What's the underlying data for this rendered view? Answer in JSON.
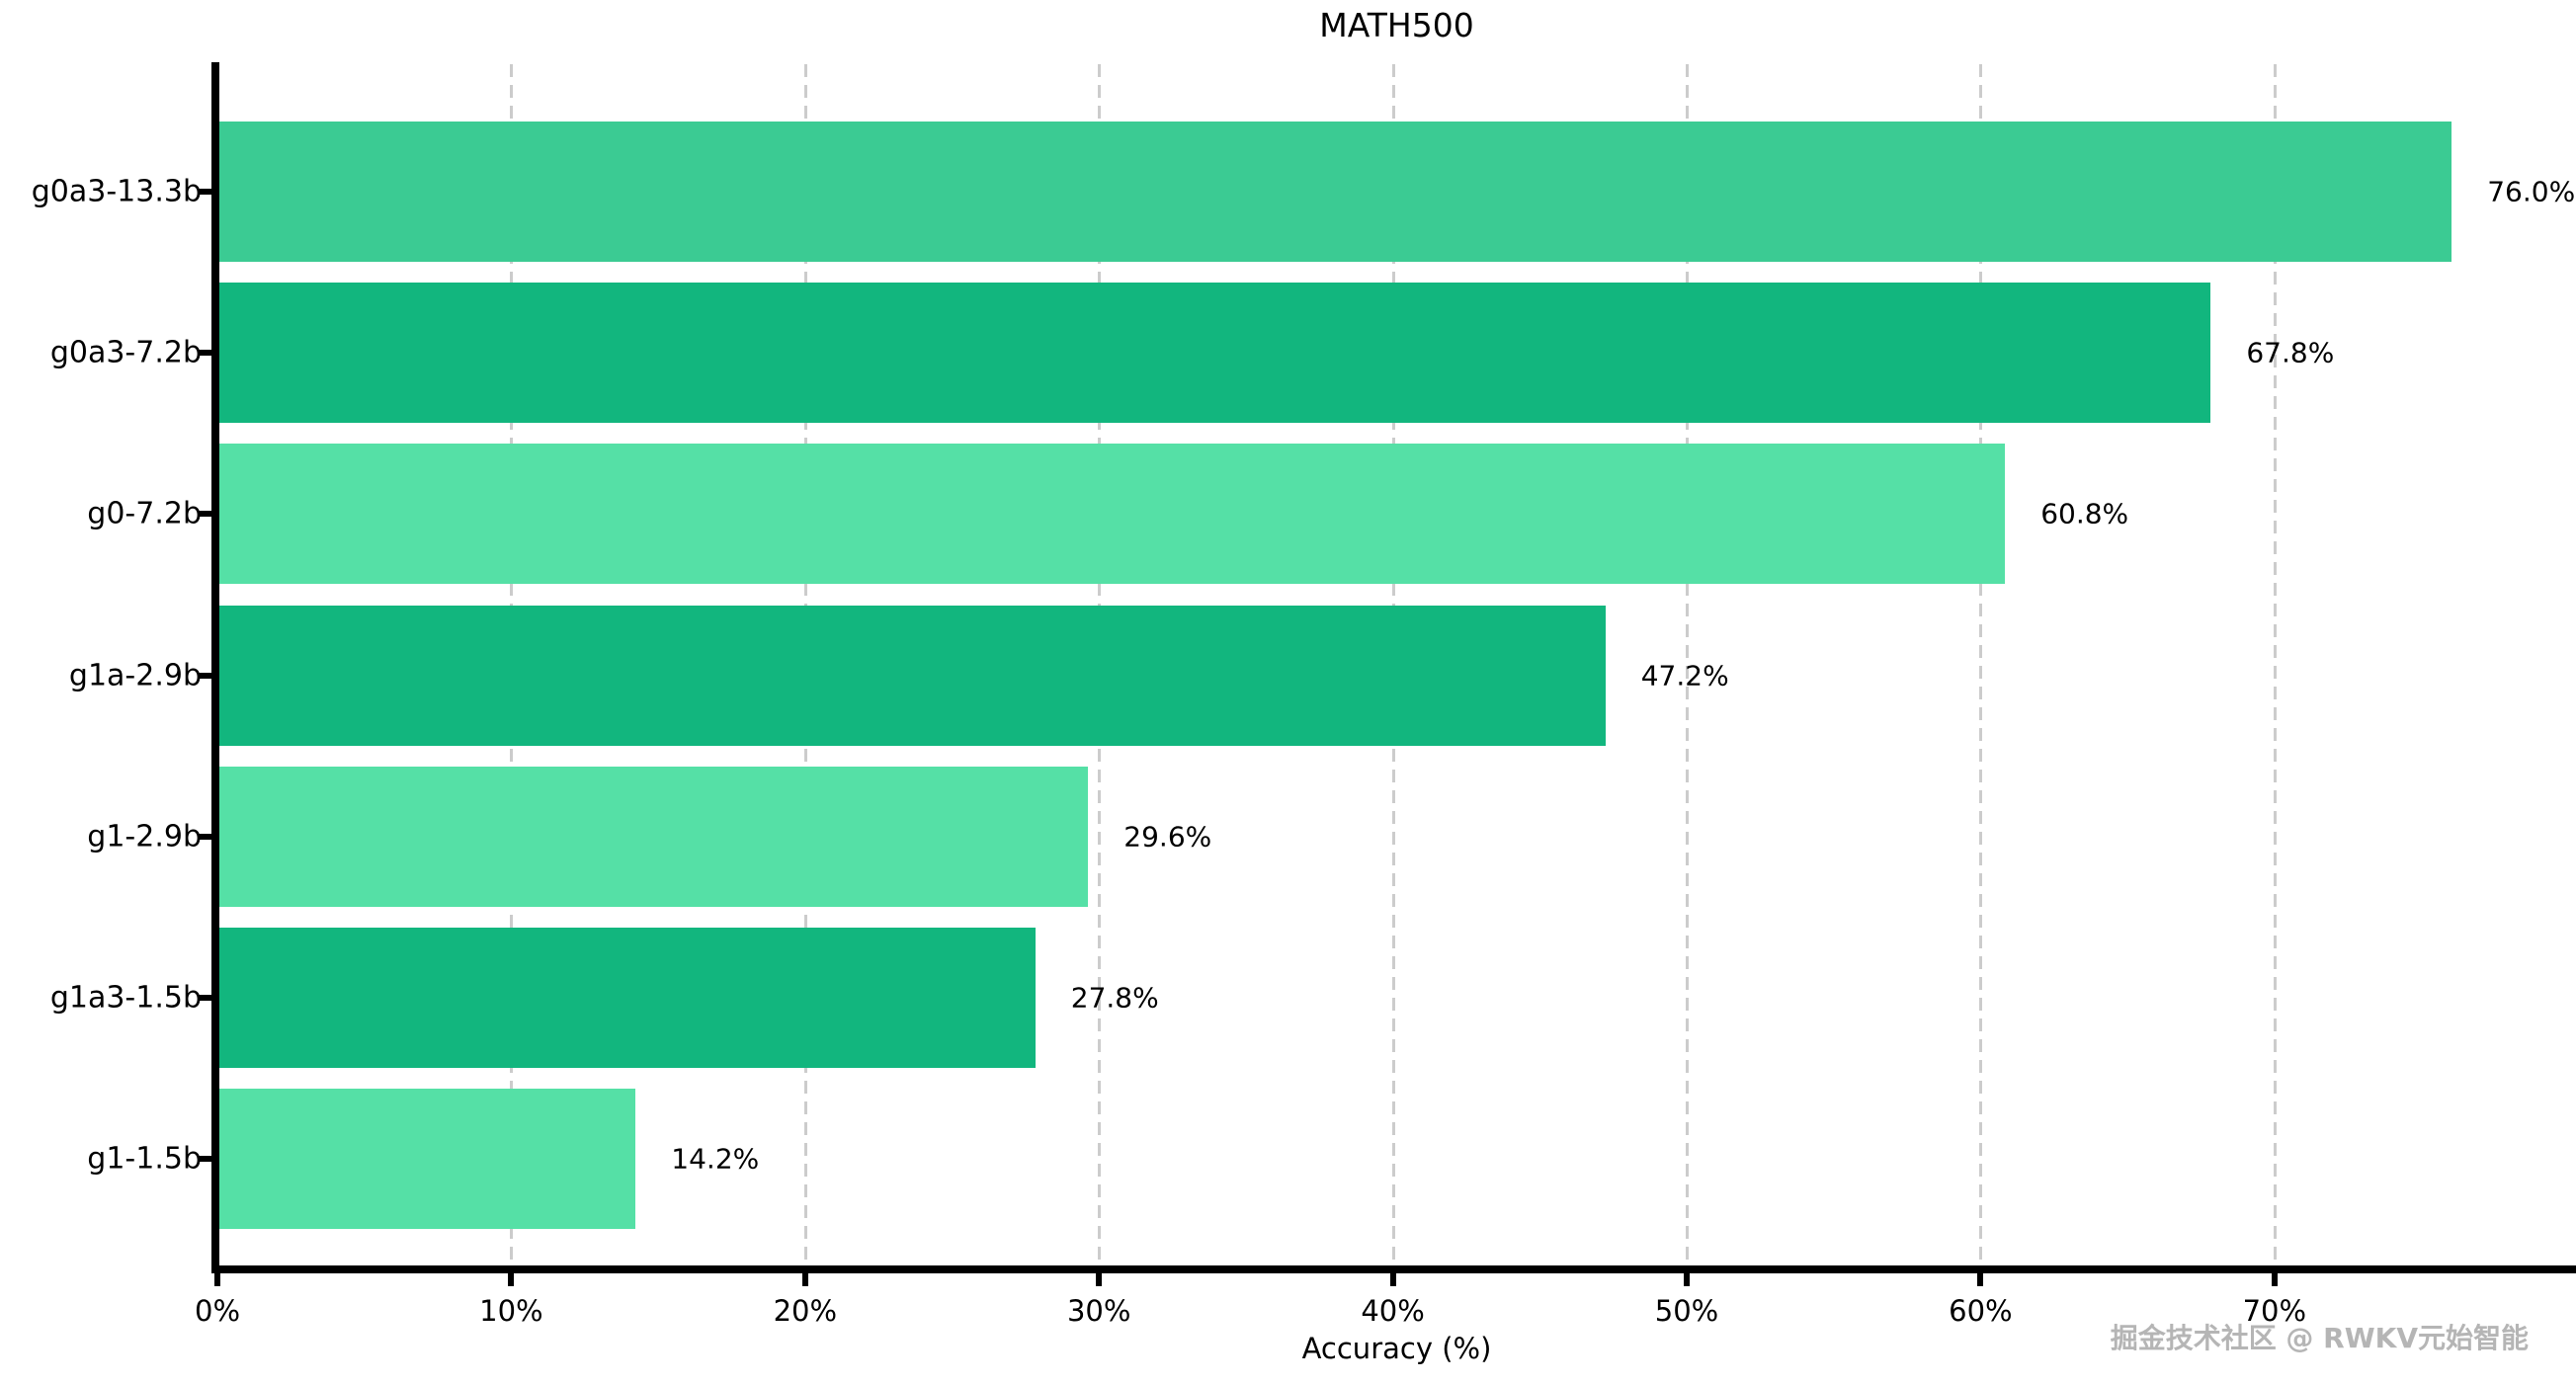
{
  "chart_data": {
    "type": "bar",
    "orientation": "horizontal",
    "title": "MATH500",
    "xlabel": "Accuracy (%)",
    "ylabel": "",
    "categories": [
      "g0a3-13.3b",
      "g0a3-7.2b",
      "g0-7.2b",
      "g1a-2.9b",
      "g1-2.9b",
      "g1a3-1.5b",
      "g1-1.5b"
    ],
    "values": [
      76.0,
      67.8,
      60.8,
      47.2,
      29.6,
      27.8,
      14.2
    ],
    "value_labels": [
      "76.0%",
      "67.8%",
      "60.8%",
      "47.2%",
      "29.6%",
      "27.8%",
      "14.2%"
    ],
    "bar_colors": [
      "#3BCB93",
      "#12B67E",
      "#55E0A6",
      "#12B67E",
      "#55E0A6",
      "#12B67E",
      "#55E0A6"
    ],
    "xlim": [
      0,
      80
    ],
    "x_tick_values": [
      0,
      10,
      20,
      30,
      40,
      50,
      60,
      70
    ],
    "x_tick_labels": [
      "0%",
      "10%",
      "20%",
      "30%",
      "40%",
      "50%",
      "60%",
      "70%"
    ],
    "grid": "vertical-dashed",
    "gridline_color": "#cccccc",
    "legend": "none"
  },
  "watermark": {
    "text": "掘金技术社区 @ RWKV元始智能",
    "color": "#b5b5b5"
  }
}
